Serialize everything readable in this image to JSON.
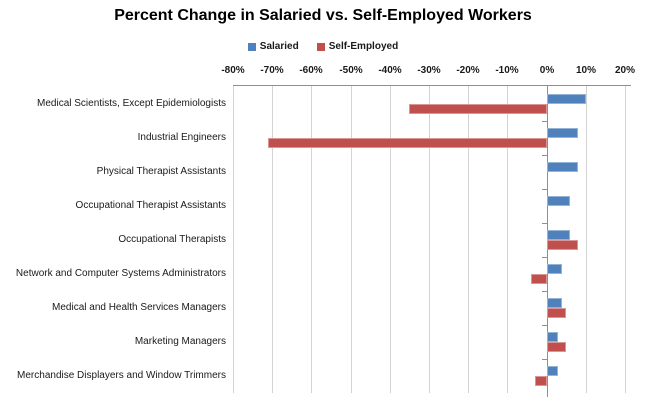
{
  "chart_data": {
    "type": "bar",
    "orientation": "horizontal",
    "title": "Percent Change in Salaried vs. Self-Employed Workers",
    "categories": [
      "Medical Scientists, Except Epidemiologists",
      "Industrial Engineers",
      "Physical Therapist Assistants",
      "Occupational Therapist Assistants",
      "Occupational Therapists",
      "Network and Computer Systems Administrators",
      "Medical and Health Services Managers",
      "Marketing Managers",
      "Merchandise Displayers and Window Trimmers"
    ],
    "series": [
      {
        "name": "Salaried",
        "color": "#4F81BD",
        "border_color": "#95B3D7",
        "values": [
          10,
          8,
          8,
          6,
          6,
          4,
          4,
          3,
          3
        ]
      },
      {
        "name": "Self-Employed",
        "color": "#C0504D",
        "border_color": "#D99694",
        "values": [
          -35,
          -71,
          0,
          0,
          8,
          -4,
          5,
          5,
          -3
        ]
      }
    ],
    "x_ticks": [
      "-80%",
      "-70%",
      "-60%",
      "-50%",
      "-40%",
      "-30%",
      "-20%",
      "-10%",
      "0%",
      "10%",
      "20%"
    ],
    "x_tick_values": [
      -80,
      -70,
      -60,
      -50,
      -40,
      -30,
      -20,
      -10,
      0,
      10,
      20
    ],
    "xlim": [
      -80,
      20
    ],
    "value_unit": "%",
    "grid": true,
    "legend_position": "top",
    "x_axis_side": "top",
    "background_color": "#FFFFFF"
  }
}
